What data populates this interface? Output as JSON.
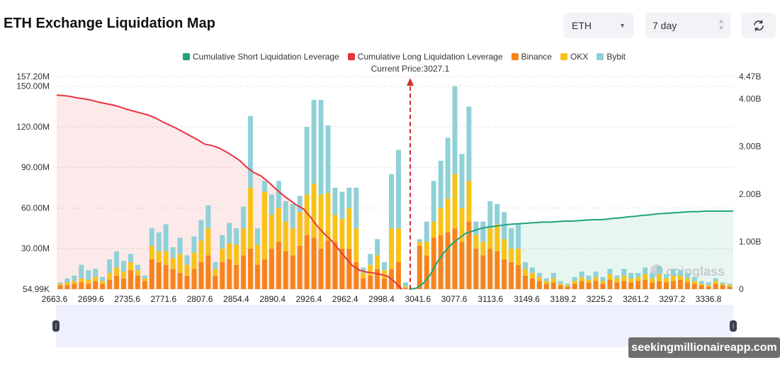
{
  "header": {
    "title": "ETH Exchange Liquidation Map"
  },
  "controls": {
    "coin": "ETH",
    "period": "7 day",
    "refresh_icon": "refresh-icon"
  },
  "colors": {
    "short": "#1fa37f",
    "long": "#e8343f",
    "binance": "#f7841a",
    "okx": "#f7c31a",
    "bybit": "#8fd1d6"
  },
  "watermark": {
    "logo": "coinglass",
    "badge": "seekingmillionaireapp.com"
  },
  "chart_data": {
    "type": "bar",
    "title": "",
    "current_price_label": "Current Price:3027.1",
    "current_price": 3027.1,
    "legend": [
      "Cumulative Short Liquidation Leverage",
      "Cumulative Long Liquidation Leverage",
      "Binance",
      "OKX",
      "Bybit"
    ],
    "legend_position": "top",
    "x_tick_labels": [
      "2663.6",
      "2699.6",
      "2735.6",
      "2771.6",
      "2807.6",
      "2854.4",
      "2890.4",
      "2926.4",
      "2962.4",
      "2998.4",
      "3041.6",
      "3077.6",
      "3113.6",
      "3149.6",
      "3189.2",
      "3225.2",
      "3261.2",
      "3297.2",
      "3336.8"
    ],
    "y_left_ticks": [
      "157.20M",
      "150.00M",
      "120.00M",
      "90.00M",
      "60.00M",
      "30.00M",
      "54.99K"
    ],
    "y_left_values_m": [
      157.2,
      150,
      120,
      90,
      60,
      30,
      0.055
    ],
    "y_left_range_m": [
      0,
      157.2
    ],
    "y_right_ticks": [
      "4.47B",
      "4.00B",
      "3.00B",
      "2.00B",
      "1.00B",
      "0"
    ],
    "y_right_values_b": [
      4.47,
      4,
      3,
      2,
      1,
      0
    ],
    "y_right_range_b": [
      0,
      4.47
    ],
    "grid": true,
    "bars_unit": "M",
    "bars": [
      [
        3,
        1,
        1
      ],
      [
        3,
        2,
        3
      ],
      [
        4,
        2,
        4
      ],
      [
        5,
        3,
        10
      ],
      [
        4,
        3,
        7
      ],
      [
        6,
        3,
        6
      ],
      [
        4,
        2,
        3
      ],
      [
        7,
        5,
        10
      ],
      [
        10,
        6,
        12
      ],
      [
        8,
        5,
        8
      ],
      [
        14,
        6,
        6
      ],
      [
        10,
        4,
        4
      ],
      [
        6,
        2,
        2
      ],
      [
        22,
        10,
        13
      ],
      [
        20,
        8,
        14
      ],
      [
        18,
        10,
        20
      ],
      [
        15,
        8,
        8
      ],
      [
        12,
        14,
        12
      ],
      [
        10,
        8,
        7
      ],
      [
        15,
        12,
        12
      ],
      [
        20,
        16,
        15
      ],
      [
        25,
        20,
        17
      ],
      [
        10,
        5,
        5
      ],
      [
        20,
        10,
        10
      ],
      [
        22,
        12,
        15
      ],
      [
        18,
        15,
        12
      ],
      [
        25,
        20,
        16
      ],
      [
        30,
        45,
        53
      ],
      [
        18,
        15,
        12
      ],
      [
        22,
        50,
        8
      ],
      [
        30,
        25,
        15
      ],
      [
        35,
        25,
        20
      ],
      [
        28,
        22,
        15
      ],
      [
        25,
        20,
        18
      ],
      [
        32,
        25,
        12
      ],
      [
        40,
        30,
        50
      ],
      [
        38,
        40,
        62
      ],
      [
        30,
        40,
        70
      ],
      [
        36,
        35,
        50
      ],
      [
        35,
        20,
        20
      ],
      [
        30,
        22,
        20
      ],
      [
        30,
        30,
        15
      ],
      [
        20,
        25,
        30
      ],
      [
        8,
        4,
        4
      ],
      [
        10,
        8,
        8
      ],
      [
        15,
        10,
        12
      ],
      [
        8,
        6,
        6
      ],
      [
        15,
        30,
        40
      ],
      [
        20,
        25,
        58
      ],
      [
        1,
        1,
        3
      ],
      [
        0,
        0,
        0
      ],
      [
        32,
        3,
        2
      ],
      [
        25,
        10,
        15
      ],
      [
        38,
        12,
        30
      ],
      [
        40,
        20,
        35
      ],
      [
        42,
        25,
        45
      ],
      [
        45,
        40,
        65
      ],
      [
        35,
        25,
        40
      ],
      [
        50,
        30,
        55
      ],
      [
        30,
        10,
        10
      ],
      [
        25,
        10,
        15
      ],
      [
        30,
        15,
        20
      ],
      [
        28,
        20,
        15
      ],
      [
        22,
        15,
        20
      ],
      [
        20,
        10,
        15
      ],
      [
        18,
        12,
        18
      ],
      [
        10,
        5,
        5
      ],
      [
        8,
        4,
        4
      ],
      [
        6,
        3,
        3
      ],
      [
        4,
        2,
        2
      ],
      [
        5,
        3,
        4
      ],
      [
        3,
        1,
        2
      ],
      [
        2,
        1,
        1
      ],
      [
        4,
        2,
        3
      ],
      [
        6,
        3,
        4
      ],
      [
        5,
        2,
        3
      ],
      [
        6,
        3,
        4
      ],
      [
        4,
        2,
        3
      ],
      [
        7,
        4,
        4
      ],
      [
        5,
        3,
        2
      ],
      [
        6,
        4,
        5
      ],
      [
        5,
        3,
        4
      ],
      [
        6,
        3,
        3
      ],
      [
        7,
        4,
        5
      ],
      [
        5,
        3,
        4
      ],
      [
        6,
        5,
        6
      ],
      [
        5,
        3,
        3
      ],
      [
        6,
        4,
        5
      ],
      [
        7,
        3,
        4
      ],
      [
        5,
        3,
        4
      ],
      [
        4,
        2,
        3
      ],
      [
        3,
        1,
        2
      ],
      [
        2,
        1,
        2
      ],
      [
        4,
        2,
        2
      ],
      [
        3,
        1,
        1
      ],
      [
        2,
        1,
        1
      ]
    ],
    "cumulative_long_b": [
      4.08,
      4.07,
      4.05,
      4.02,
      4.0,
      3.97,
      3.93,
      3.9,
      3.87,
      3.83,
      3.78,
      3.74,
      3.7,
      3.66,
      3.6,
      3.52,
      3.45,
      3.38,
      3.3,
      3.22,
      3.14,
      3.05,
      3.02,
      2.97,
      2.89,
      2.8,
      2.7,
      2.56,
      2.45,
      2.38,
      2.26,
      2.12,
      1.99,
      1.88,
      1.77,
      1.69,
      1.52,
      1.32,
      1.16,
      1.02,
      0.84,
      0.66,
      0.49,
      0.4,
      0.36,
      0.34,
      0.31,
      0.27,
      0.15,
      0
    ],
    "cumulative_short_b": [
      0,
      0.02,
      0.12,
      0.3,
      0.57,
      0.78,
      0.94,
      1.06,
      1.17,
      1.22,
      1.27,
      1.3,
      1.32,
      1.34,
      1.36,
      1.37,
      1.38,
      1.39,
      1.4,
      1.41,
      1.41,
      1.42,
      1.43,
      1.43,
      1.44,
      1.45,
      1.46,
      1.46,
      1.47,
      1.49,
      1.5,
      1.52,
      1.53,
      1.55,
      1.56,
      1.58,
      1.59,
      1.6,
      1.61,
      1.62,
      1.63,
      1.63,
      1.64,
      1.64,
      1.64,
      1.64
    ]
  }
}
